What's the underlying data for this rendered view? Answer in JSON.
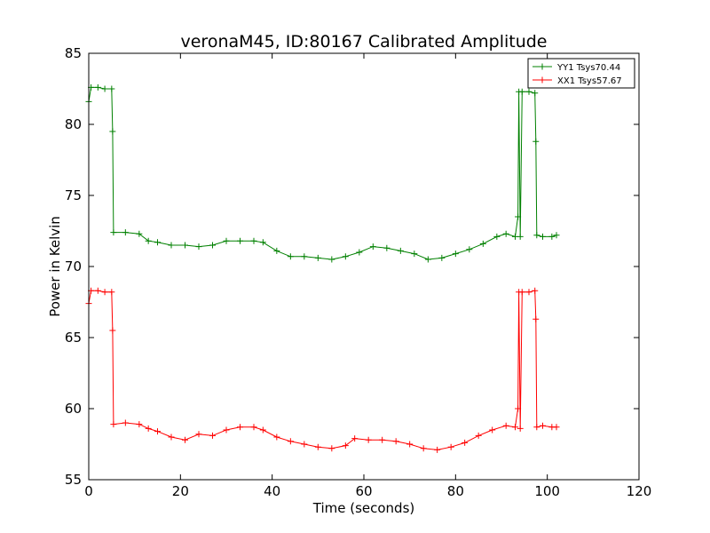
{
  "chart_data": {
    "type": "line",
    "title": "veronaM45, ID:80167 Calibrated Amplitude",
    "xlabel": "Time (seconds)",
    "ylabel": "Power in Kelvin",
    "xlim": [
      0,
      120
    ],
    "ylim": [
      55,
      85
    ],
    "xticks": [
      0,
      20,
      40,
      60,
      80,
      100,
      120
    ],
    "yticks": [
      55,
      60,
      65,
      70,
      75,
      80,
      85
    ],
    "grid": false,
    "legend_position": "top-right",
    "marker": "+",
    "series": [
      {
        "name": "YY1 Tsys70.44",
        "color": "#008000",
        "points": [
          [
            0,
            81.6
          ],
          [
            0.5,
            82.6
          ],
          [
            2,
            82.6
          ],
          [
            3.5,
            82.5
          ],
          [
            5,
            82.5
          ],
          [
            5.2,
            79.5
          ],
          [
            5.4,
            72.4
          ],
          [
            8,
            72.4
          ],
          [
            11,
            72.3
          ],
          [
            13,
            71.8
          ],
          [
            15,
            71.7
          ],
          [
            18,
            71.5
          ],
          [
            21,
            71.5
          ],
          [
            24,
            71.4
          ],
          [
            27,
            71.5
          ],
          [
            30,
            71.8
          ],
          [
            33,
            71.8
          ],
          [
            36,
            71.8
          ],
          [
            38,
            71.7
          ],
          [
            41,
            71.1
          ],
          [
            44,
            70.7
          ],
          [
            47,
            70.7
          ],
          [
            50,
            70.6
          ],
          [
            53,
            70.5
          ],
          [
            56,
            70.7
          ],
          [
            59,
            71.0
          ],
          [
            62,
            71.4
          ],
          [
            65,
            71.3
          ],
          [
            68,
            71.1
          ],
          [
            71,
            70.9
          ],
          [
            74,
            70.5
          ],
          [
            77,
            70.6
          ],
          [
            80,
            70.9
          ],
          [
            83,
            71.2
          ],
          [
            86,
            71.6
          ],
          [
            89,
            72.1
          ],
          [
            91,
            72.3
          ],
          [
            93,
            72.1
          ],
          [
            93.6,
            73.5
          ],
          [
            93.8,
            82.3
          ],
          [
            94.1,
            72.1
          ],
          [
            94.5,
            82.3
          ],
          [
            96,
            82.3
          ],
          [
            97.3,
            82.2
          ],
          [
            97.5,
            78.8
          ],
          [
            97.7,
            72.2
          ],
          [
            99,
            72.1
          ],
          [
            101,
            72.1
          ],
          [
            102,
            72.2
          ]
        ]
      },
      {
        "name": "XX1 Tsys57.67",
        "color": "#ff0000",
        "points": [
          [
            0,
            67.4
          ],
          [
            0.5,
            68.3
          ],
          [
            2,
            68.3
          ],
          [
            3.5,
            68.2
          ],
          [
            5,
            68.2
          ],
          [
            5.2,
            65.5
          ],
          [
            5.4,
            58.9
          ],
          [
            8,
            59.0
          ],
          [
            11,
            58.9
          ],
          [
            13,
            58.6
          ],
          [
            15,
            58.4
          ],
          [
            18,
            58.0
          ],
          [
            21,
            57.8
          ],
          [
            24,
            58.2
          ],
          [
            27,
            58.1
          ],
          [
            30,
            58.5
          ],
          [
            33,
            58.7
          ],
          [
            36,
            58.7
          ],
          [
            38,
            58.5
          ],
          [
            41,
            58.0
          ],
          [
            44,
            57.7
          ],
          [
            47,
            57.5
          ],
          [
            50,
            57.3
          ],
          [
            53,
            57.2
          ],
          [
            56,
            57.4
          ],
          [
            58,
            57.9
          ],
          [
            61,
            57.8
          ],
          [
            64,
            57.8
          ],
          [
            67,
            57.7
          ],
          [
            70,
            57.5
          ],
          [
            73,
            57.2
          ],
          [
            76,
            57.1
          ],
          [
            79,
            57.3
          ],
          [
            82,
            57.6
          ],
          [
            85,
            58.1
          ],
          [
            88,
            58.5
          ],
          [
            91,
            58.8
          ],
          [
            93,
            58.7
          ],
          [
            93.6,
            60.0
          ],
          [
            93.8,
            68.2
          ],
          [
            94.1,
            58.6
          ],
          [
            94.5,
            68.2
          ],
          [
            96,
            68.2
          ],
          [
            97.3,
            68.3
          ],
          [
            97.5,
            66.3
          ],
          [
            97.7,
            58.7
          ],
          [
            99,
            58.8
          ],
          [
            101,
            58.7
          ],
          [
            102,
            58.7
          ]
        ]
      }
    ]
  }
}
